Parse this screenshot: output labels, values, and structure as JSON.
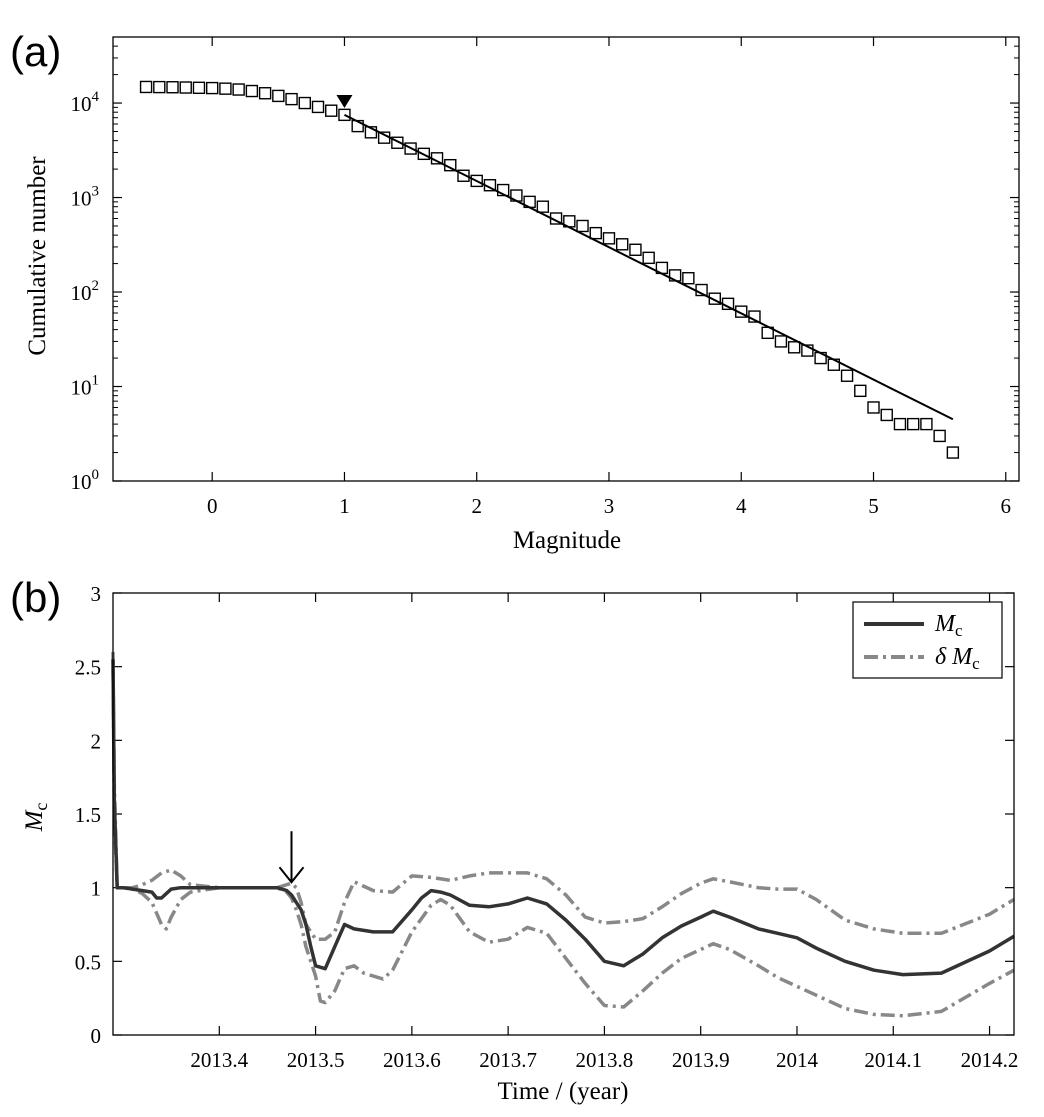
{
  "chart_data": [
    {
      "panel": "(a)",
      "type": "scatter",
      "title": "",
      "xlabel": "Magnitude",
      "ylabel": "Cumulative number",
      "xlim": [
        -0.75,
        6.1
      ],
      "ylim": [
        1,
        50000
      ],
      "yscale": "log",
      "xticks": [
        0,
        1,
        2,
        3,
        4,
        5,
        6
      ],
      "yticks": [
        {
          "value": 1,
          "base": "10",
          "exp": "0"
        },
        {
          "value": 10,
          "base": "10",
          "exp": "1"
        },
        {
          "value": 100,
          "base": "10",
          "exp": "2"
        },
        {
          "value": 1000,
          "base": "10",
          "exp": "3"
        },
        {
          "value": 10000,
          "base": "10",
          "exp": "4"
        }
      ],
      "grid": false,
      "series": [
        {
          "marker": "open-square",
          "x": [
            -0.5,
            -0.4,
            -0.3,
            -0.2,
            -0.1,
            0.0,
            0.1,
            0.2,
            0.3,
            0.4,
            0.5,
            0.6,
            0.7,
            0.8,
            0.9,
            1.0,
            1.1,
            1.2,
            1.3,
            1.4,
            1.5,
            1.6,
            1.7,
            1.8,
            1.9,
            2.0,
            2.1,
            2.2,
            2.3,
            2.4,
            2.5,
            2.6,
            2.7,
            2.8,
            2.9,
            3.0,
            3.1,
            3.2,
            3.3,
            3.4,
            3.5,
            3.6,
            3.7,
            3.8,
            3.9,
            4.0,
            4.1,
            4.2,
            4.3,
            4.4,
            4.5,
            4.6,
            4.7,
            4.8,
            4.9,
            5.0,
            5.1,
            5.2,
            5.3,
            5.4,
            5.5,
            5.6
          ],
          "y": [
            14800,
            14750,
            14700,
            14600,
            14500,
            14400,
            14200,
            13900,
            13400,
            12700,
            11900,
            11000,
            10000,
            9100,
            8300,
            7500,
            5700,
            4900,
            4300,
            3800,
            3300,
            2900,
            2600,
            2200,
            1700,
            1500,
            1350,
            1200,
            1050,
            900,
            800,
            600,
            560,
            500,
            420,
            370,
            320,
            280,
            230,
            180,
            150,
            140,
            105,
            85,
            75,
            62,
            55,
            37,
            30,
            26,
            24,
            20,
            17,
            13,
            9,
            6,
            5,
            4,
            4,
            4,
            3,
            2
          ]
        },
        {
          "marker": "line",
          "x": [
            1.0,
            5.6
          ],
          "y": [
            7500,
            4.5
          ]
        }
      ],
      "annotations": [
        {
          "marker": "down-triangle",
          "x": 1.0,
          "y": 10000
        }
      ]
    },
    {
      "panel": "(b)",
      "type": "line",
      "title": "",
      "xlabel": "Time / (year)",
      "ylabel": {
        "main": "M",
        "sub": "c"
      },
      "xlim": [
        2013.2896,
        2014.2254
      ],
      "ylim": [
        0,
        3
      ],
      "xticks": [
        2013.4,
        2013.5,
        2013.6,
        2013.7,
        2013.8,
        2013.9,
        2014.0,
        2014.1,
        2014.2
      ],
      "xtick_labels": [
        "2013.4",
        "2013.5",
        "2013.6",
        "2013.7",
        "2013.8",
        "2013.9",
        "2014",
        "2014.1",
        "2014.2"
      ],
      "yticks": [
        0,
        0.5,
        1,
        1.5,
        2,
        2.5,
        3
      ],
      "ytick_labels": [
        "0",
        "0.5",
        "1",
        "1.5",
        "2",
        "2.5",
        "3"
      ],
      "grid": false,
      "legend": {
        "position": "top-right",
        "entries": [
          {
            "main": "M",
            "sub": "c",
            "style": "solid"
          },
          {
            "main": "δ M",
            "sub": "c",
            "style": "dash-dot"
          }
        ]
      },
      "series": [
        {
          "name": "Mc",
          "color": "#333333",
          "style": "solid",
          "x": [
            2013.2896,
            2013.291,
            2013.294,
            2013.3,
            2013.31,
            2013.32,
            2013.33,
            2013.335,
            2013.34,
            2013.345,
            2013.35,
            2013.36,
            2013.37,
            2013.4,
            2013.42,
            2013.44,
            2013.46,
            2013.47,
            2013.475,
            2013.48,
            2013.485,
            2013.49,
            2013.495,
            2013.5,
            2013.51,
            2013.52,
            2013.53,
            2013.54,
            2013.56,
            2013.58,
            2013.6,
            2013.61,
            2013.62,
            2013.63,
            2013.64,
            2013.66,
            2013.68,
            2013.7,
            2013.72,
            2013.74,
            2013.76,
            2013.78,
            2013.8,
            2013.82,
            2013.84,
            2013.86,
            2013.88,
            2013.9,
            2013.913,
            2013.93,
            2013.96,
            2013.98,
            2014.0,
            2014.02,
            2014.05,
            2014.08,
            2014.11,
            2014.15,
            2014.2,
            2014.2254
          ],
          "y": [
            2.55,
            1.6,
            1.0,
            1.0,
            0.99,
            0.98,
            0.97,
            0.93,
            0.93,
            0.96,
            0.99,
            1.0,
            1.0,
            1.0,
            1.0,
            1.0,
            1.0,
            0.98,
            0.95,
            0.9,
            0.85,
            0.75,
            0.6,
            0.47,
            0.45,
            0.6,
            0.75,
            0.72,
            0.7,
            0.7,
            0.85,
            0.93,
            0.98,
            0.97,
            0.95,
            0.88,
            0.87,
            0.89,
            0.93,
            0.89,
            0.78,
            0.65,
            0.5,
            0.47,
            0.55,
            0.66,
            0.74,
            0.8,
            0.84,
            0.8,
            0.72,
            0.69,
            0.66,
            0.59,
            0.5,
            0.44,
            0.41,
            0.42,
            0.57,
            0.67
          ]
        },
        {
          "name": "δMc upper",
          "color": "#888888",
          "style": "dash-dot",
          "x": [
            2013.2896,
            2013.291,
            2013.294,
            2013.3,
            2013.31,
            2013.32,
            2013.33,
            2013.34,
            2013.35,
            2013.36,
            2013.37,
            2013.4,
            2013.42,
            2013.44,
            2013.46,
            2013.47,
            2013.475,
            2013.48,
            2013.485,
            2013.49,
            2013.5,
            2013.51,
            2013.52,
            2013.53,
            2013.54,
            2013.56,
            2013.58,
            2013.6,
            2013.62,
            2013.64,
            2013.66,
            2013.68,
            2013.7,
            2013.72,
            2013.74,
            2013.76,
            2013.78,
            2013.8,
            2013.82,
            2013.84,
            2013.86,
            2013.88,
            2013.9,
            2013.913,
            2013.93,
            2013.96,
            2013.98,
            2014.0,
            2014.02,
            2014.05,
            2014.08,
            2014.11,
            2014.15,
            2014.2,
            2014.2254
          ],
          "y": [
            2.6,
            1.5,
            1.0,
            1.0,
            1.0,
            1.02,
            1.05,
            1.1,
            1.12,
            1.08,
            1.02,
            1.0,
            1.0,
            1.0,
            1.0,
            1.02,
            1.03,
            1.0,
            0.9,
            0.75,
            0.65,
            0.65,
            0.7,
            0.9,
            1.04,
            0.98,
            0.97,
            1.08,
            1.07,
            1.05,
            1.08,
            1.1,
            1.1,
            1.1,
            1.06,
            0.95,
            0.8,
            0.76,
            0.77,
            0.79,
            0.87,
            0.96,
            1.03,
            1.06,
            1.04,
            1.0,
            0.99,
            0.99,
            0.92,
            0.78,
            0.72,
            0.69,
            0.69,
            0.82,
            0.92
          ]
        },
        {
          "name": "δMc lower",
          "color": "#888888",
          "style": "dash-dot",
          "x": [
            2013.2896,
            2013.291,
            2013.294,
            2013.3,
            2013.31,
            2013.32,
            2013.33,
            2013.34,
            2013.345,
            2013.35,
            2013.36,
            2013.37,
            2013.4,
            2013.42,
            2013.44,
            2013.46,
            2013.47,
            2013.475,
            2013.48,
            2013.485,
            2013.49,
            2013.5,
            2013.505,
            2013.51,
            2013.52,
            2013.53,
            2013.54,
            2013.55,
            2013.57,
            2013.58,
            2013.6,
            2013.62,
            2013.63,
            2013.64,
            2013.66,
            2013.68,
            2013.7,
            2013.72,
            2013.74,
            2013.76,
            2013.78,
            2013.8,
            2013.82,
            2013.84,
            2013.86,
            2013.88,
            2013.9,
            2013.913,
            2013.93,
            2013.96,
            2013.98,
            2014.0,
            2014.02,
            2014.05,
            2014.08,
            2014.11,
            2014.15,
            2014.2,
            2014.2254
          ],
          "y": [
            2.5,
            1.7,
            1.0,
            1.0,
            0.99,
            0.96,
            0.9,
            0.75,
            0.72,
            0.8,
            0.92,
            0.97,
            1.0,
            1.0,
            1.0,
            1.0,
            0.97,
            0.93,
            0.85,
            0.75,
            0.6,
            0.4,
            0.23,
            0.22,
            0.3,
            0.45,
            0.47,
            0.42,
            0.38,
            0.44,
            0.7,
            0.88,
            0.92,
            0.88,
            0.7,
            0.63,
            0.65,
            0.73,
            0.69,
            0.52,
            0.35,
            0.2,
            0.19,
            0.3,
            0.42,
            0.52,
            0.58,
            0.62,
            0.58,
            0.47,
            0.39,
            0.33,
            0.27,
            0.18,
            0.14,
            0.13,
            0.16,
            0.35,
            0.44
          ]
        }
      ],
      "annotations": [
        {
          "marker": "down-arrow",
          "x": 2013.475,
          "y": 1.03
        }
      ]
    }
  ]
}
